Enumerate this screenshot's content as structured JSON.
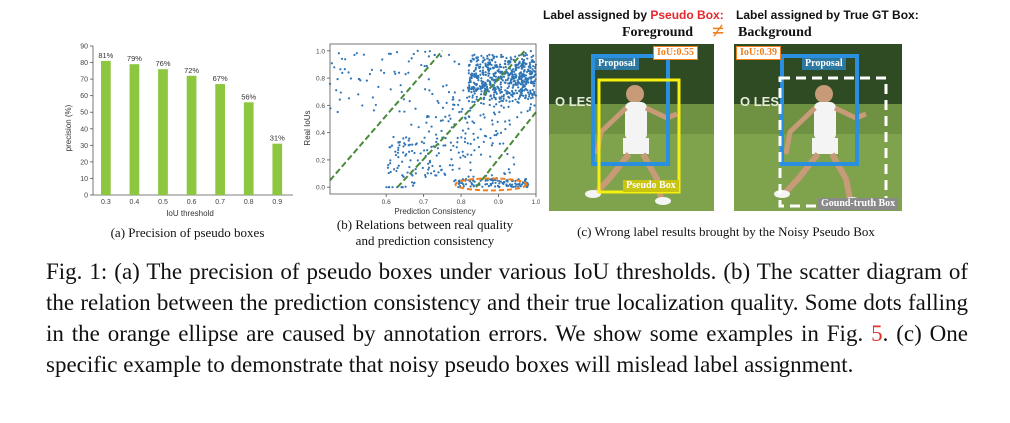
{
  "chart_data": [
    {
      "type": "bar",
      "categories": [
        "0.3",
        "0.4",
        "0.5",
        "0.6",
        "0.7",
        "0.8",
        "0.9"
      ],
      "values": [
        81,
        79,
        76,
        72,
        67,
        56,
        31
      ],
      "data_labels": [
        "81%",
        "79%",
        "76%",
        "72%",
        "67%",
        "56%",
        "31%"
      ],
      "xlabel": "IoU threshold",
      "ylabel": "precision (%)",
      "ylim": [
        0,
        90
      ],
      "yticks": [
        0,
        10,
        20,
        30,
        40,
        50,
        60,
        70,
        80,
        90
      ],
      "color": "#8dc63f",
      "grid": false
    },
    {
      "type": "scatter",
      "xlabel": "Prediction Consistency",
      "ylabel": "Real IoUs",
      "xlim": [
        0.45,
        1.0
      ],
      "ylim": [
        -0.05,
        1.05
      ],
      "xticks": [
        "0.6",
        "0.7",
        "0.8",
        "0.9",
        "1.0"
      ],
      "yticks": [
        "0.0",
        "0.2",
        "0.4",
        "0.6",
        "0.8",
        "1.0"
      ],
      "color": "#2f75b5",
      "guide_line_color": "#4a8a3a",
      "ellipse_color": "#f07f1c",
      "grid": false
    }
  ],
  "panel_a": {
    "caption": "(a) Precision of pseudo boxes"
  },
  "panel_b": {
    "caption_line1": "(b) Relations between  real quality",
    "caption_line2": "and prediction consistency"
  },
  "panel_c": {
    "header_left_prefix": "Label assigned by ",
    "header_left_highlight": "Pseudo Box:",
    "header_right": "Label assigned by True GT Box:",
    "foreground": "Foreground",
    "background": "Background",
    "left_iou": "IoU:0.55",
    "right_iou": "IoU:0.39",
    "left_proposal": "Proposal",
    "right_proposal": "Proposal",
    "pseudo_box": "Pseudo Box",
    "gt_box": "Gound-truth Box",
    "caption": "(c) Wrong label results brought by the Noisy Pseudo Box",
    "not_equal_symbol": "≠",
    "colors": {
      "highlight": "#e8262b",
      "iou": "#f07f1c",
      "proposal": "#2b8fe0",
      "pseudo": "#f5f010"
    }
  },
  "figure_caption": {
    "part1": "Fig. 1: (a) The precision of pseudo boxes under various IoU thresholds. (b) The scatter diagram of the relation between the prediction consistency and their true localization quality. Some dots falling in the orange ellipse are caused by annotation errors. We show some examples in Fig. ",
    "ref": "5",
    "part2": ". (c) One specific example to demonstrate that noisy pseudo boxes will mislead label assignment."
  }
}
